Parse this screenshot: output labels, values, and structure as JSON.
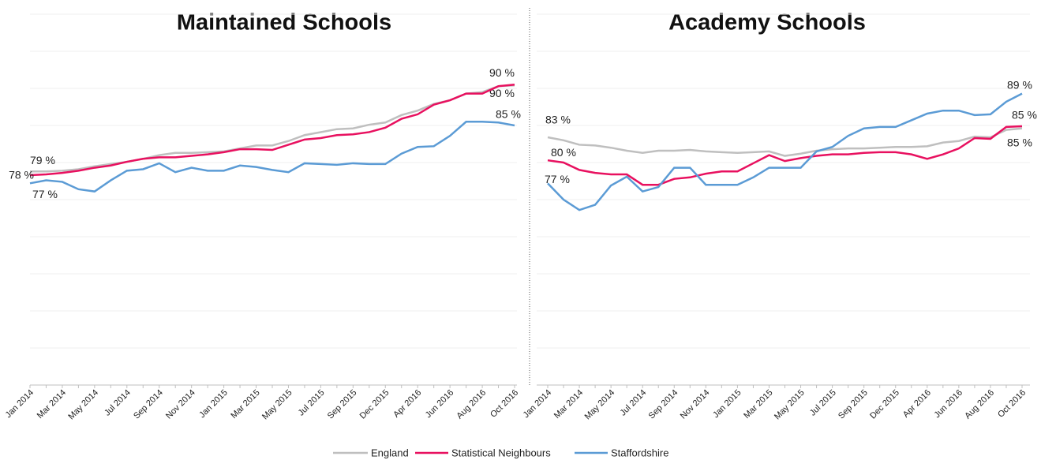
{
  "chart_data": [
    {
      "type": "line",
      "title": "Maintained Schools",
      "categories": [
        "Jan 2014",
        null,
        "Mar 2014",
        null,
        "May 2014",
        null,
        "Jul 2014",
        null,
        "Sep 2014",
        null,
        "Nov 2014",
        null,
        "Jan 2015",
        null,
        "Mar 2015",
        null,
        "May 2015",
        null,
        "Jul 2015",
        null,
        "Sep 2015",
        null,
        "Dec 2015",
        null,
        "Apr 2016",
        null,
        "Jun 2016",
        null,
        "Aug 2016",
        null,
        "Oct 2016"
      ],
      "ylim": [
        50,
        100
      ],
      "yticks": [
        50,
        55,
        60,
        65,
        70,
        75,
        80,
        85,
        90,
        95,
        100
      ],
      "grid": true,
      "series": [
        {
          "name": "England",
          "color": "#bfbfbf",
          "values": [
            78.8,
            78.8,
            78.9,
            79.1,
            79.5,
            79.8,
            80.1,
            80.5,
            81.0,
            81.3,
            81.3,
            81.4,
            81.5,
            81.9,
            82.3,
            82.3,
            82.9,
            83.7,
            84.1,
            84.5,
            84.6,
            85.1,
            85.4,
            86.4,
            87.0,
            87.9,
            88.4,
            89.3,
            89.5,
            90.3,
            90.4
          ],
          "value_labels": [
            "79 %",
            null,
            null,
            null,
            null,
            null,
            null,
            null,
            null,
            null,
            null,
            null,
            null,
            null,
            null,
            null,
            null,
            null,
            null,
            null,
            null,
            null,
            null,
            null,
            null,
            null,
            null,
            null,
            null,
            null,
            "90 %"
          ]
        },
        {
          "name": "Statistical Neighbours",
          "color": "#e8105f",
          "values": [
            78.3,
            78.4,
            78.6,
            78.9,
            79.3,
            79.6,
            80.1,
            80.5,
            80.7,
            80.7,
            80.9,
            81.1,
            81.4,
            81.8,
            81.8,
            81.7,
            82.4,
            83.1,
            83.3,
            83.7,
            83.8,
            84.1,
            84.7,
            85.9,
            86.5,
            87.8,
            88.4,
            89.3,
            89.3,
            90.3,
            90.5
          ],
          "value_labels": [
            "78 %",
            null,
            null,
            null,
            null,
            null,
            null,
            null,
            null,
            null,
            null,
            null,
            null,
            null,
            null,
            null,
            null,
            null,
            null,
            null,
            null,
            null,
            null,
            null,
            null,
            null,
            null,
            null,
            null,
            null,
            "90 %"
          ]
        },
        {
          "name": "Staffordshire",
          "color": "#5b9bd5",
          "values": [
            77.2,
            77.6,
            77.4,
            76.4,
            76.1,
            77.6,
            78.9,
            79.1,
            79.9,
            78.7,
            79.3,
            78.9,
            78.9,
            79.6,
            79.4,
            79.0,
            78.7,
            79.9,
            79.8,
            79.7,
            79.9,
            79.8,
            79.8,
            81.2,
            82.1,
            82.2,
            83.6,
            85.5,
            85.5,
            85.4,
            85.0
          ],
          "value_labels": [
            "77 %",
            null,
            null,
            null,
            null,
            null,
            null,
            null,
            null,
            null,
            null,
            null,
            null,
            null,
            null,
            null,
            null,
            null,
            null,
            null,
            null,
            null,
            null,
            null,
            null,
            null,
            null,
            null,
            null,
            null,
            "85 %"
          ]
        }
      ]
    },
    {
      "type": "line",
      "title": "Academy Schools",
      "categories": [
        "Jan 2014",
        null,
        "Mar 2014",
        null,
        "May 2014",
        null,
        "Jul 2014",
        null,
        "Sep 2014",
        null,
        "Nov 2014",
        null,
        "Jan 2015",
        null,
        "Mar 2015",
        null,
        "May 2015",
        null,
        "Jul 2015",
        null,
        "Sep 2015",
        null,
        "Dec 2015",
        null,
        "Apr 2016",
        null,
        "Jun 2016",
        null,
        "Aug 2016",
        null,
        "Oct 2016"
      ],
      "ylim": [
        50,
        100
      ],
      "yticks": [
        50,
        55,
        60,
        65,
        70,
        75,
        80,
        85,
        90,
        95,
        100
      ],
      "grid": true,
      "series": [
        {
          "color": "#bfbfbf",
          "values": [
            83.4,
            83.0,
            82.4,
            82.3,
            82.0,
            81.6,
            81.3,
            81.6,
            81.6,
            81.7,
            81.5,
            81.4,
            81.3,
            81.4,
            81.5,
            80.9,
            81.2,
            81.6,
            81.8,
            81.9,
            81.9,
            82.0,
            82.1,
            82.1,
            82.2,
            82.7,
            82.9,
            83.5,
            83.4,
            84.4,
            84.6
          ],
          "value_labels": [
            "83 %",
            null,
            null,
            null,
            null,
            null,
            null,
            null,
            null,
            null,
            null,
            null,
            null,
            null,
            null,
            null,
            null,
            null,
            null,
            null,
            null,
            null,
            null,
            null,
            null,
            null,
            null,
            null,
            null,
            null,
            "85 %"
          ]
        },
        {
          "color": "#e8105f",
          "values": [
            80.3,
            80.0,
            79.0,
            78.6,
            78.4,
            78.4,
            77.0,
            77.0,
            77.8,
            78.0,
            78.5,
            78.8,
            78.8,
            79.9,
            81.0,
            80.2,
            80.6,
            80.9,
            81.1,
            81.1,
            81.3,
            81.4,
            81.4,
            81.1,
            80.5,
            81.1,
            81.9,
            83.3,
            83.2,
            84.8,
            84.9
          ],
          "value_labels": [
            "80 %",
            null,
            null,
            null,
            null,
            null,
            null,
            null,
            null,
            null,
            null,
            null,
            null,
            null,
            null,
            null,
            null,
            null,
            null,
            null,
            null,
            null,
            null,
            null,
            null,
            null,
            null,
            null,
            null,
            null,
            "85 %"
          ]
        },
        {
          "color": "#5b9bd5",
          "values": [
            77.2,
            75.0,
            73.6,
            74.3,
            76.9,
            78.1,
            76.1,
            76.7,
            79.3,
            79.3,
            77.0,
            77.0,
            77.0,
            78.0,
            79.3,
            79.3,
            79.3,
            81.5,
            82.1,
            83.6,
            84.6,
            84.8,
            84.8,
            85.7,
            86.6,
            87.0,
            87.0,
            86.4,
            86.5,
            88.2,
            89.3
          ],
          "value_labels": [
            "77 %",
            null,
            null,
            null,
            null,
            null,
            null,
            null,
            null,
            null,
            null,
            null,
            null,
            null,
            null,
            null,
            null,
            null,
            null,
            null,
            null,
            null,
            null,
            null,
            null,
            null,
            null,
            null,
            null,
            null,
            "89 %"
          ]
        }
      ]
    }
  ]
}
